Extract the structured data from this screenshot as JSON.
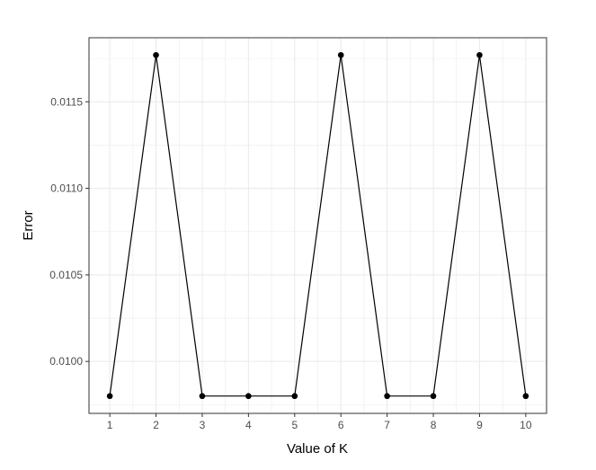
{
  "chart_data": {
    "type": "line",
    "title": "",
    "xlabel": "Value of K",
    "ylabel": "Error",
    "x": [
      1,
      2,
      3,
      4,
      5,
      6,
      7,
      8,
      9,
      10
    ],
    "series": [
      {
        "values": [
          0.0098,
          0.01177,
          0.0098,
          0.0098,
          0.0098,
          0.01177,
          0.0098,
          0.0098,
          0.01177,
          0.0098
        ]
      }
    ],
    "xticks": [
      "1",
      "2",
      "3",
      "4",
      "5",
      "6",
      "7",
      "8",
      "9",
      "10"
    ],
    "yticks": [
      "0.0100",
      "0.0105",
      "0.0110",
      "0.0115"
    ],
    "xlim": [
      0.55,
      10.45
    ],
    "ylim": [
      0.0097,
      0.01187
    ],
    "grid": true,
    "legend": "none",
    "colors": {
      "line": "#000000",
      "point": "#000000",
      "grid": "#ebebeb",
      "panel_border": "#333333",
      "tick_text": "#4d4d4d"
    }
  }
}
